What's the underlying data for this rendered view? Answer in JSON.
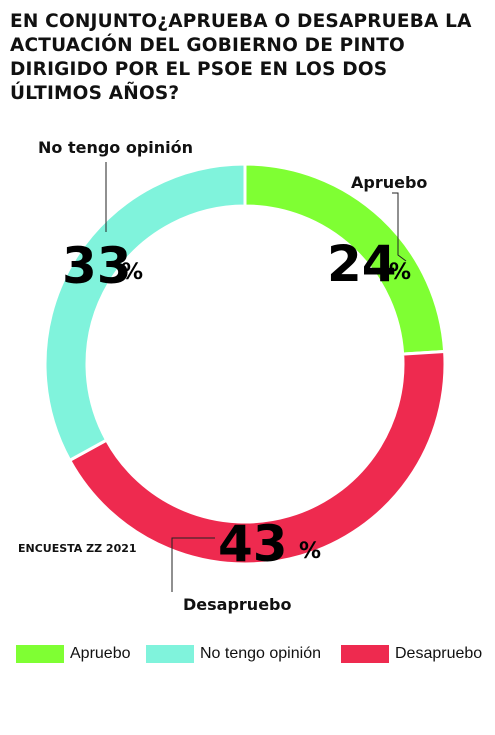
{
  "title": "EN CONJUNTO¿APRUEBA O DESAPRUEBA LA ACTUACIÓN DEL GOBIERNO DE PINTO DIRIGIDO POR EL PSOE EN LOS DOS ÚLTIMOS AÑOS?",
  "source": "ENCUESTA ZZ 2021",
  "chart_data": {
    "type": "pie",
    "style": "donut",
    "title": "EN CONJUNTO¿APRUEBA O DESAPRUEBA LA ACTUACIÓN DEL GOBIERNO DE PINTO DIRIGIDO POR EL PSOE EN LOS DOS ÚLTIMOS AÑOS?",
    "slices": [
      {
        "label": "Apruebo",
        "value": 24,
        "display_value": "24",
        "unit": "%",
        "color": "#7fff33"
      },
      {
        "label": "Desapruebo",
        "value": 43,
        "display_value": "43",
        "unit": "%",
        "color": "#ee2a4f"
      },
      {
        "label": "No tengo opinión",
        "value": 33,
        "display_value": "33",
        "unit": "%",
        "color": "#80f3dc"
      }
    ],
    "legend": {
      "position": "bottom",
      "items": [
        {
          "label": "Apruebo",
          "color": "#7fff33"
        },
        {
          "label": "No tengo opinión",
          "color": "#80f3dc"
        },
        {
          "label": "Desapruebo",
          "color": "#ee2a4f"
        }
      ]
    }
  }
}
